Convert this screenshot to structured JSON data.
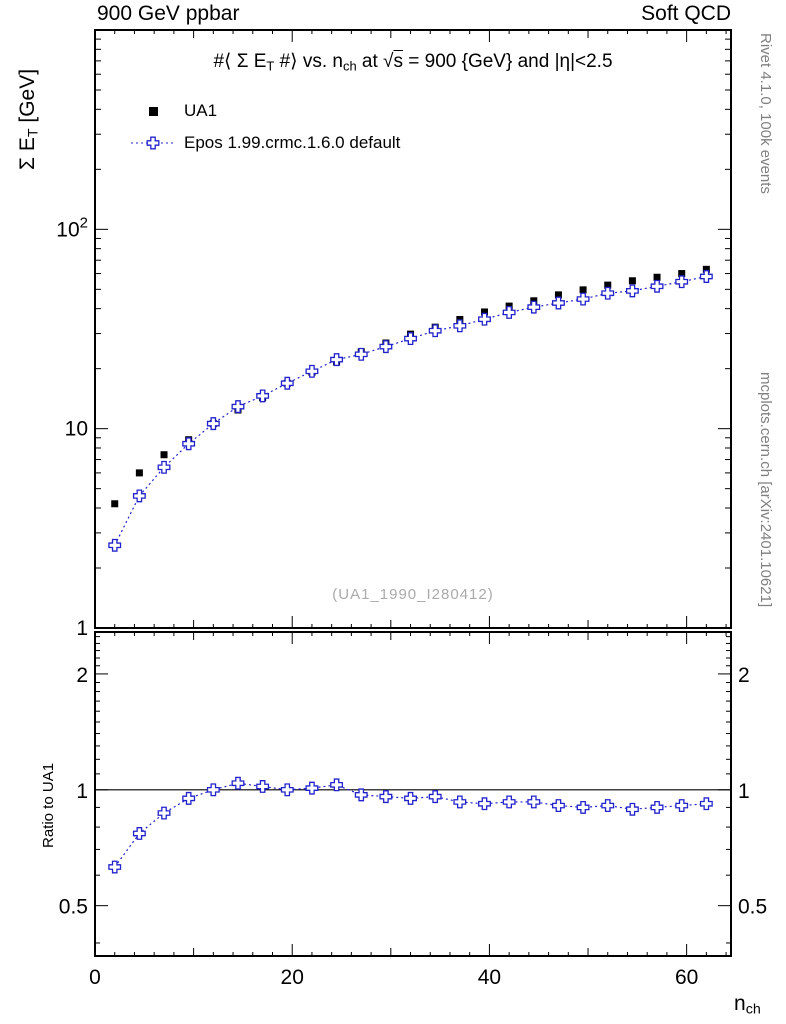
{
  "header": {
    "left": "900 GeV ppbar",
    "right": "Soft QCD"
  },
  "plot": {
    "title_segments": [
      {
        "t": "#⟨ Σ E"
      },
      {
        "t": "T",
        "sub": true
      },
      {
        "t": " #⟩ vs. n"
      },
      {
        "t": "ch",
        "sub": true
      },
      {
        "t": " at "
      },
      {
        "t": "√"
      },
      {
        "t": "s",
        "over": true
      },
      {
        "t": " = 900 {GeV} and |η|<2.5"
      }
    ],
    "ylabel_segments": [
      {
        "t": "Σ E"
      },
      {
        "t": "T",
        "sub": true
      },
      {
        "t": " [GeV]"
      }
    ],
    "xlabel_segments": [
      {
        "t": "n"
      },
      {
        "t": "ch",
        "sub": true
      }
    ],
    "ratio_label": "Ratio to UA1",
    "watermark": "(UA1_1990_I280412)"
  },
  "side_notes": {
    "top": "Rivet 4.1.0,  100k events",
    "bottom": "mcplots.cern.ch [arXiv:2401.10621]"
  },
  "colors": {
    "ua1": "#000000",
    "epos": "#2222cc",
    "frame": "#000000",
    "watermark": "#aaaaaa",
    "side_text": "#808080"
  },
  "chart_data": {
    "type": "scatter",
    "title": "⟨Σ ET⟩ vs. nch at √s = 900 GeV and |η|<2.5",
    "xlabel": "n_ch",
    "ylabel": "Σ E_T [GeV]",
    "ratio_ylabel": "Ratio to UA1",
    "xlim": [
      0,
      64.5
    ],
    "ylim_main": [
      1,
      1000
    ],
    "ylim_ratio": [
      0.37,
      2.57
    ],
    "x_ticks": [
      0,
      20,
      40,
      60
    ],
    "y_ticks_main": [
      {
        "v": 1,
        "label": "1"
      },
      {
        "v": 10,
        "label": "10"
      },
      {
        "v": 100,
        "label": "10",
        "sup": "2"
      }
    ],
    "y_ticks_ratio": [
      0.5,
      1,
      2
    ],
    "grid": false,
    "legend_position": "top-left",
    "x": [
      2,
      4.5,
      7,
      9.5,
      12,
      14.5,
      17,
      19.5,
      22,
      24.5,
      27,
      29.5,
      32,
      34.5,
      37,
      39.5,
      42,
      44.5,
      47,
      49.5,
      52,
      54.5,
      57,
      59.5,
      62
    ],
    "series": [
      {
        "name": "UA1",
        "marker": "filled-square",
        "color": "#000000",
        "values": [
          4.2,
          6.0,
          7.4,
          8.8,
          10.6,
          12.4,
          14.3,
          16.9,
          19.2,
          21.6,
          24.3,
          26.9,
          29.8,
          32.3,
          35.3,
          38.5,
          41.2,
          43.8,
          46.9,
          49.7,
          52.5,
          55.2,
          57.5,
          60.0,
          63.0
        ]
      },
      {
        "name": "Epos 1.99.crmc.1.6.0 default",
        "marker": "open-cross",
        "color": "#2222cc",
        "line": "dotted",
        "values": [
          2.6,
          4.6,
          6.4,
          8.4,
          10.6,
          12.9,
          14.6,
          16.9,
          19.4,
          22.2,
          23.6,
          25.8,
          28.3,
          31.0,
          32.8,
          35.4,
          38.3,
          40.7,
          42.7,
          44.7,
          47.8,
          49.1,
          51.8,
          54.6,
          58.0
        ]
      }
    ],
    "ratio": {
      "name": "Epos 1.99.crmc.1.6.0 default / UA1",
      "reference_line": 1.0,
      "values": [
        0.63,
        0.77,
        0.87,
        0.95,
        1.0,
        1.04,
        1.02,
        1.0,
        1.01,
        1.03,
        0.97,
        0.96,
        0.95,
        0.96,
        0.93,
        0.92,
        0.93,
        0.93,
        0.91,
        0.9,
        0.91,
        0.89,
        0.9,
        0.91,
        0.92
      ]
    }
  }
}
